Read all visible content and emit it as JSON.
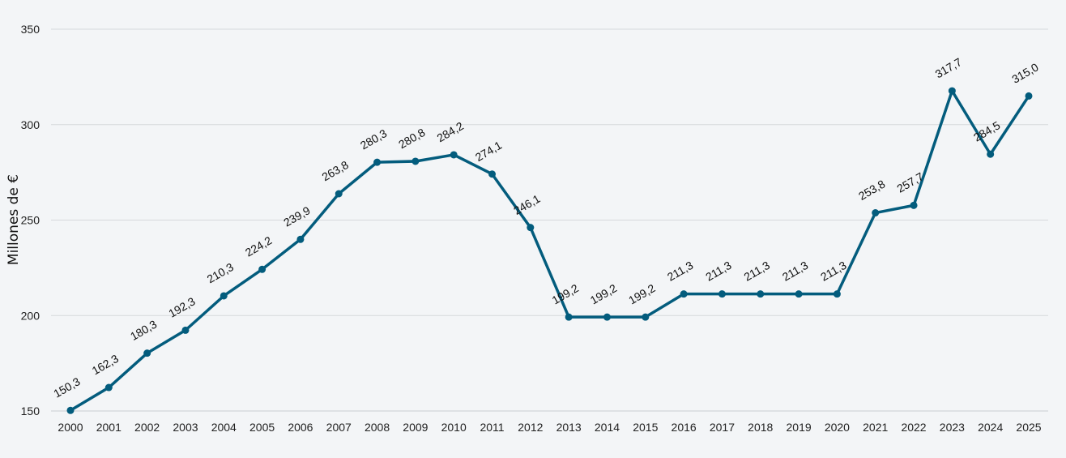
{
  "chart_data": {
    "type": "line",
    "ylabel": "Millones de €",
    "xlabel": "",
    "ylim": [
      150,
      350
    ],
    "yticks": [
      150,
      200,
      250,
      300,
      350
    ],
    "grid": true,
    "color": "#035c7d",
    "x": [
      "2000",
      "2001",
      "2002",
      "2003",
      "2004",
      "2005",
      "2006",
      "2007",
      "2008",
      "2009",
      "2010",
      "2011",
      "2012",
      "2013",
      "2014",
      "2015",
      "2016",
      "2017",
      "2018",
      "2019",
      "2020",
      "2021",
      "2022",
      "2023",
      "2024",
      "2025"
    ],
    "values": [
      150.3,
      162.3,
      180.3,
      192.3,
      210.3,
      224.2,
      239.9,
      263.8,
      280.3,
      280.8,
      284.2,
      274.1,
      246.1,
      199.2,
      199.2,
      199.2,
      211.3,
      211.3,
      211.3,
      211.3,
      211.3,
      253.8,
      257.7,
      317.7,
      284.5,
      315.0
    ],
    "data_labels": [
      "150,3",
      "162,3",
      "180,3",
      "192,3",
      "210,3",
      "224,2",
      "239,9",
      "263,8",
      "280,3",
      "280,8",
      "284,2",
      "274,1",
      "246,1",
      "199,2",
      "199,2",
      "199,2",
      "211,3",
      "211,3",
      "211,3",
      "211,3",
      "211,3",
      "253,8",
      "257,7",
      "317,7",
      "284,5",
      "315,0"
    ]
  }
}
